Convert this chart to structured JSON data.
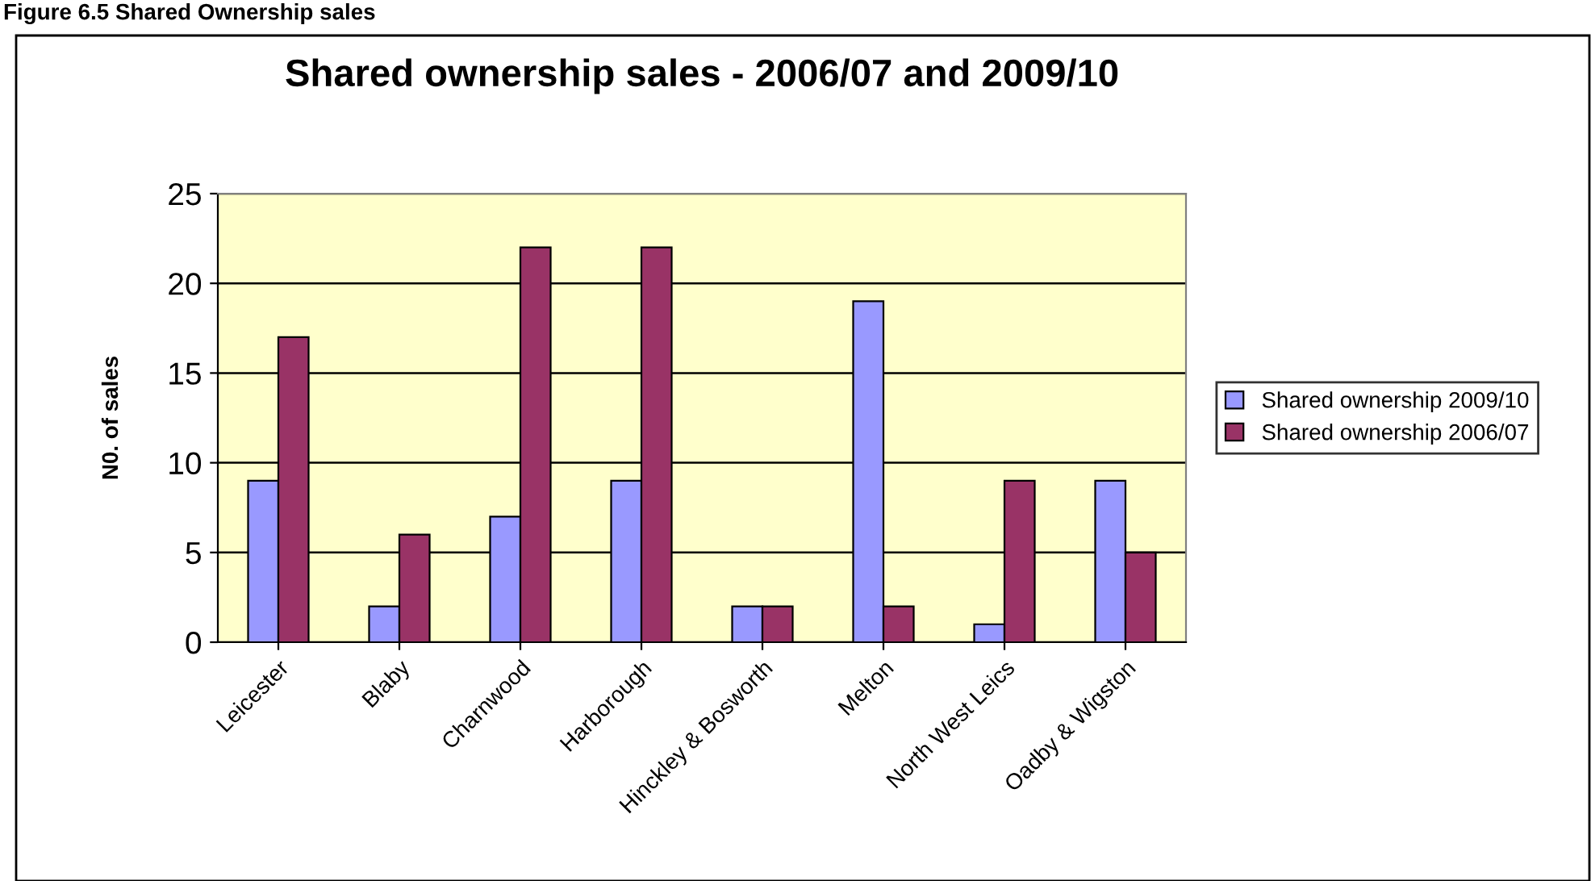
{
  "chart_data": {
    "type": "bar",
    "title": "Shared ownership sales - 2006/07 and 2009/10",
    "ylabel": "N0. of sales",
    "annotations": [
      "Figure 6.5 Shared Ownership sales"
    ],
    "categories": [
      "Leicester",
      "Blaby",
      "Charnwood",
      "Harborough",
      "Hinckley & Bosworth",
      "Melton",
      "North West Leics",
      "Oadby & Wigston"
    ],
    "series": [
      {
        "name": "Shared ownership 2009/10",
        "color": "#9999ff",
        "values": [
          9,
          2,
          7,
          9,
          2,
          19,
          1,
          9
        ]
      },
      {
        "name": "Shared ownership 2006/07",
        "color": "#993366",
        "values": [
          17,
          6,
          22,
          22,
          2,
          2,
          9,
          5
        ]
      }
    ],
    "ylim": [
      0,
      25
    ],
    "yticks": [
      0,
      5,
      10,
      15,
      20,
      25
    ],
    "grid": "y",
    "legend": "right"
  }
}
